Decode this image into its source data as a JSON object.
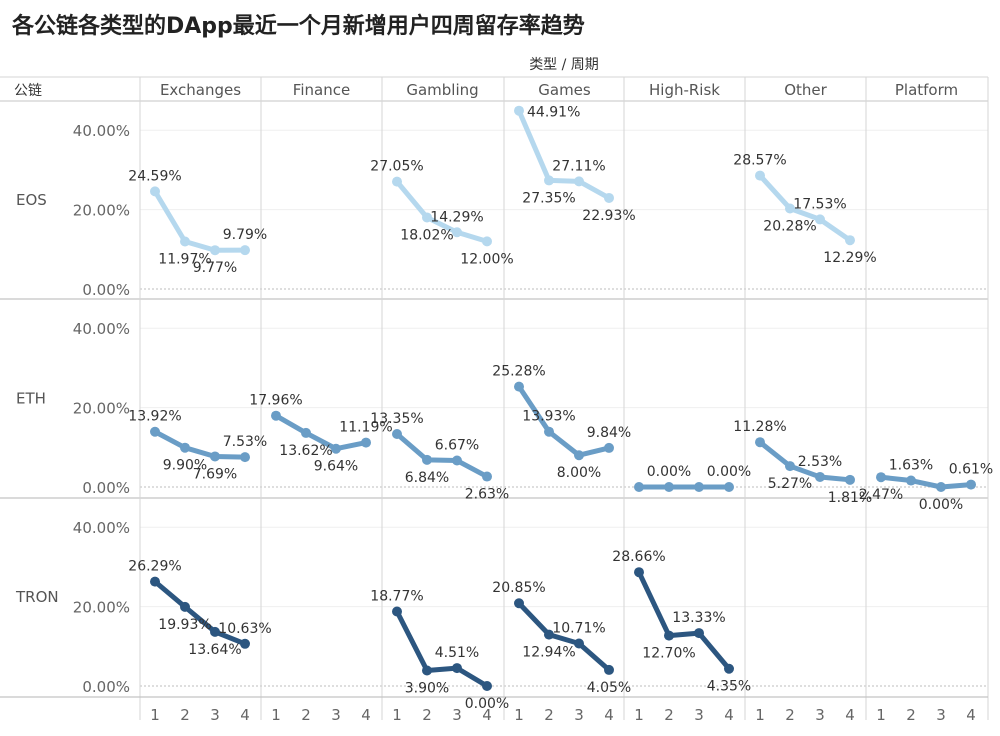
{
  "title": "各公链各类型的DApp最近一个月新增用户四周留存率趋势",
  "chart_data": {
    "type": "line",
    "title": "各公链各类型的DApp最近一个月新增用户四周留存率趋势",
    "column_header": "类型 / 周期",
    "row_header": "公链",
    "columns": [
      "Exchanges",
      "Finance",
      "Gambling",
      "Games",
      "High-Risk",
      "Other",
      "Platform"
    ],
    "rows": [
      "EOS",
      "ETH",
      "TRON"
    ],
    "x": [
      1,
      2,
      3,
      4
    ],
    "y_ticks": [
      "0.00%",
      "20.00%",
      "40.00%"
    ],
    "ylim": [
      0,
      47
    ],
    "colors": {
      "EOS": "#b5d8ee",
      "ETH": "#6a9dc6",
      "TRON": "#2c5680"
    },
    "panels": [
      {
        "row": "EOS",
        "col": "Exchanges",
        "values": [
          24.59,
          11.97,
          9.77,
          9.79
        ],
        "labels": [
          "24.59%",
          "11.97%",
          "9.77%",
          "9.79%"
        ]
      },
      {
        "row": "EOS",
        "col": "Gambling",
        "values": [
          27.05,
          18.02,
          14.29,
          12.0
        ],
        "labels": [
          "27.05%",
          "18.02%",
          "14.29%",
          "12.00%"
        ]
      },
      {
        "row": "EOS",
        "col": "Games",
        "values": [
          44.91,
          27.35,
          27.11,
          22.93
        ],
        "labels": [
          "44.91%",
          "27.35%",
          "27.11%",
          "22.93%"
        ]
      },
      {
        "row": "EOS",
        "col": "Other",
        "values": [
          28.57,
          20.28,
          17.53,
          12.29
        ],
        "labels": [
          "28.57%",
          "20.28%",
          "17.53%",
          "12.29%"
        ]
      },
      {
        "row": "ETH",
        "col": "Exchanges",
        "values": [
          13.92,
          9.9,
          7.69,
          7.53
        ],
        "labels": [
          "13.92%",
          "9.90%",
          "7.69%",
          "7.53%"
        ]
      },
      {
        "row": "ETH",
        "col": "Finance",
        "values": [
          17.96,
          13.62,
          9.64,
          11.19
        ],
        "labels": [
          "17.96%",
          "13.62%",
          "9.64%",
          "11.19%"
        ]
      },
      {
        "row": "ETH",
        "col": "Gambling",
        "values": [
          13.35,
          6.84,
          6.67,
          2.63
        ],
        "labels": [
          "13.35%",
          "6.84%",
          "6.67%",
          "2.63%"
        ]
      },
      {
        "row": "ETH",
        "col": "Games",
        "values": [
          25.28,
          13.93,
          8.0,
          9.84
        ],
        "labels": [
          "25.28%",
          "13.93%",
          "8.00%",
          "9.84%"
        ]
      },
      {
        "row": "ETH",
        "col": "High-Risk",
        "values": [
          0.0,
          0.0,
          0.0,
          0.0
        ],
        "labels": [
          "",
          "0.00%",
          "",
          "0.00%"
        ]
      },
      {
        "row": "ETH",
        "col": "Other",
        "values": [
          11.28,
          5.27,
          2.53,
          1.81
        ],
        "labels": [
          "11.28%",
          "5.27%",
          "2.53%",
          "1.81%"
        ]
      },
      {
        "row": "ETH",
        "col": "Platform",
        "values": [
          2.47,
          1.63,
          0.0,
          0.61
        ],
        "labels": [
          "2.47%",
          "1.63%",
          "0.00%",
          "0.61%"
        ]
      },
      {
        "row": "TRON",
        "col": "Exchanges",
        "values": [
          26.29,
          19.93,
          13.64,
          10.63
        ],
        "labels": [
          "26.29%",
          "19.93%",
          "13.64%",
          "10.63%"
        ]
      },
      {
        "row": "TRON",
        "col": "Gambling",
        "values": [
          18.77,
          3.9,
          4.51,
          0.0
        ],
        "labels": [
          "18.77%",
          "3.90%",
          "4.51%",
          "0.00%"
        ]
      },
      {
        "row": "TRON",
        "col": "Games",
        "values": [
          20.85,
          12.94,
          10.71,
          4.05
        ],
        "labels": [
          "20.85%",
          "12.94%",
          "10.71%",
          "4.05%"
        ]
      },
      {
        "row": "TRON",
        "col": "High-Risk",
        "values": [
          28.66,
          12.7,
          13.33,
          4.35
        ],
        "labels": [
          "28.66%",
          "12.70%",
          "13.33%",
          "4.35%"
        ]
      }
    ],
    "label_sides": {
      "EOS|Exchanges": [
        "a",
        "b",
        "b",
        "a"
      ],
      "EOS|Gambling": [
        "a",
        "b",
        "a",
        "b"
      ],
      "EOS|Games": [
        "r",
        "b",
        "a",
        "b"
      ],
      "EOS|Other": [
        "a",
        "b",
        "a",
        "b"
      ],
      "ETH|Exchanges": [
        "a",
        "b",
        "b",
        "a"
      ],
      "ETH|Finance": [
        "a",
        "b",
        "b",
        "a"
      ],
      "ETH|Gambling": [
        "a",
        "b",
        "a",
        "b"
      ],
      "ETH|Games": [
        "a",
        "a",
        "b",
        "a"
      ],
      "ETH|High-Risk": [
        "a",
        "a",
        "a",
        "a"
      ],
      "ETH|Other": [
        "a",
        "b",
        "a",
        "b"
      ],
      "ETH|Platform": [
        "b",
        "a",
        "b",
        "a"
      ],
      "TRON|Exchanges": [
        "a",
        "b",
        "b",
        "a"
      ],
      "TRON|Gambling": [
        "a",
        "b",
        "a",
        "b"
      ],
      "TRON|Games": [
        "a",
        "b",
        "a",
        "b"
      ],
      "TRON|High-Risk": [
        "a",
        "b",
        "a",
        "b"
      ]
    }
  }
}
